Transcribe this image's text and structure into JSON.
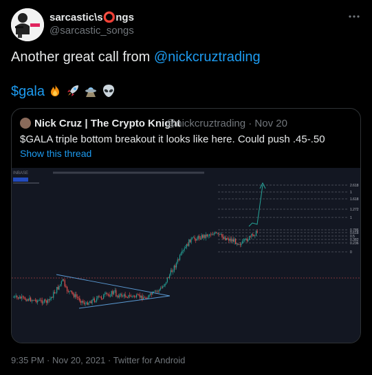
{
  "tweet": {
    "author_name": "sarcastic\\s⭕ngs",
    "author_handle": "@sarcastic_songs",
    "text_prefix": "Another great call from ",
    "mention": "@nickcruztrading",
    "cashtag": "$gala",
    "emoji_icons": [
      "fire-icon",
      "rocket-icon",
      "ufo-icon",
      "alien-icon"
    ],
    "more_icon": "more-icon"
  },
  "quoted": {
    "author_name": "Nick Cruz | The Crypto Knight",
    "handle_and_date": "@nickcruztrading · Nov 20",
    "text": "$GALA triple bottom breakout it looks like here. Could push .45-.50",
    "show_thread": "Show this thread",
    "chart_image": {
      "exchange_label": "INBASE",
      "fib_labels": [
        "2.618",
        "1",
        "1.618",
        "1.272",
        "1",
        "0.786",
        "0.618",
        "0.5",
        "0.382",
        "0.236",
        "0"
      ],
      "colors": {
        "up": "#26a69a",
        "down": "#ef5350",
        "background": "#131722",
        "annotation": "#5b9bd5"
      }
    }
  },
  "footer": {
    "timestamp": "9:35 PM · Nov 20, 2021 · Twitter for Android"
  }
}
